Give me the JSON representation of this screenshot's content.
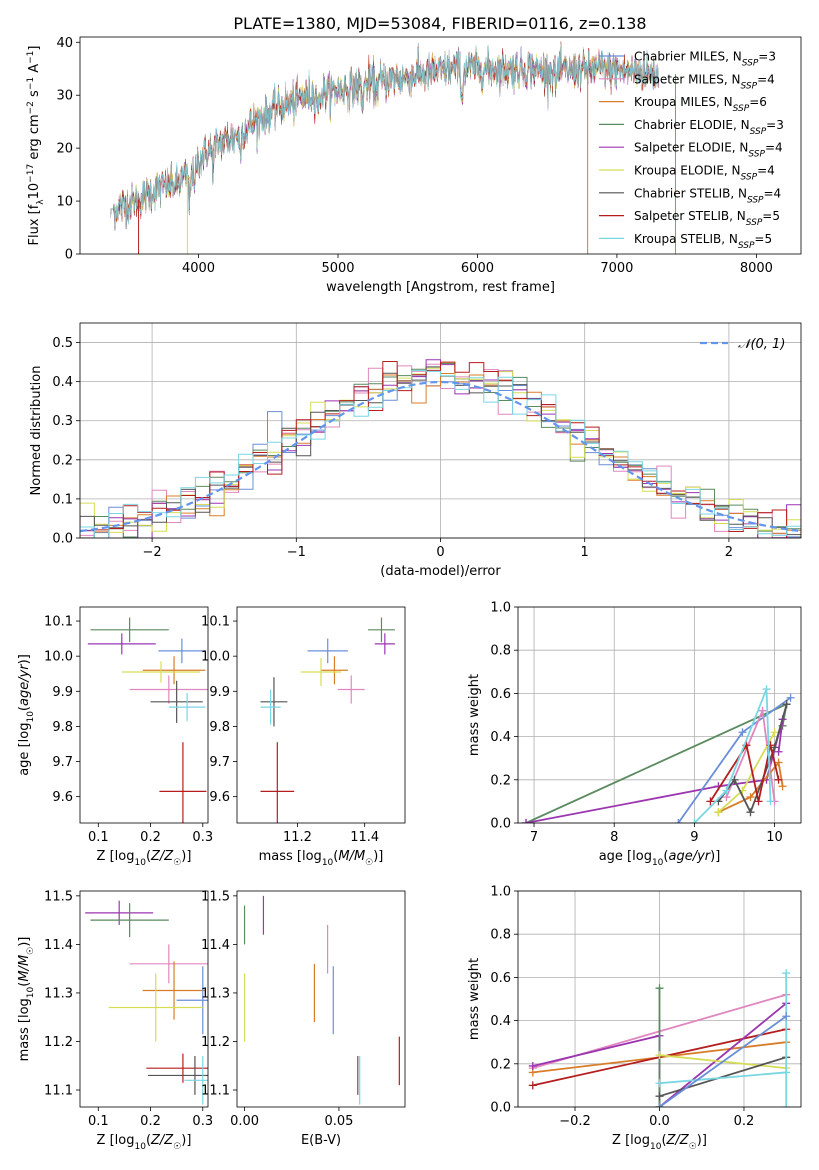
{
  "title": "PLATE=1380, MJD=53084, FIBERID=0116, z=0.138",
  "colors": {
    "Chabrier MILES": "#6a8fd8",
    "Salpeter MILES": "#e087bf",
    "Kroupa MILES": "#d87e2a",
    "Chabrier ELODIE": "#5a8a5f",
    "Salpeter ELODIE": "#9b35b0",
    "Kroupa ELODIE": "#d6dd55",
    "Chabrier STELIB": "#555555",
    "Salpeter STELIB": "#b51e1e",
    "Kroupa STELIB": "#79d6e3",
    "gaussian": "#6495ed"
  },
  "chart_data": [
    {
      "id": "spectrum",
      "type": "line",
      "xlabel": "wavelength [Angstrom, rest frame]",
      "ylabel": "Flux [f_λ 10^-17 erg cm^-2 s^-1 A^-1]",
      "xlim": [
        3150,
        8320
      ],
      "ylim": [
        0,
        41
      ],
      "xticks": [
        4000,
        5000,
        6000,
        7000,
        8000
      ],
      "yticks": [
        0,
        10,
        20,
        30,
        40
      ],
      "legend_position": "top-right",
      "series": [
        {
          "name": "Chabrier MILES",
          "nssp": 3
        },
        {
          "name": "Salpeter MILES",
          "nssp": 4
        },
        {
          "name": "Kroupa MILES",
          "nssp": 6
        },
        {
          "name": "Chabrier ELODIE",
          "nssp": 3
        },
        {
          "name": "Salpeter ELODIE",
          "nssp": 4
        },
        {
          "name": "Kroupa ELODIE",
          "nssp": 4
        },
        {
          "name": "Chabrier STELIB",
          "nssp": 4
        },
        {
          "name": "Salpeter STELIB",
          "nssp": 5
        },
        {
          "name": "Kroupa STELIB",
          "nssp": 5
        }
      ],
      "continuum": [
        [
          3370,
          8
        ],
        [
          3450,
          9
        ],
        [
          3550,
          10
        ],
        [
          3650,
          11.5
        ],
        [
          3750,
          13
        ],
        [
          3850,
          13
        ],
        [
          3950,
          16
        ],
        [
          4050,
          19
        ],
        [
          4150,
          21
        ],
        [
          4250,
          22
        ],
        [
          4400,
          25
        ],
        [
          4600,
          28
        ],
        [
          4800,
          30
        ],
        [
          5000,
          31
        ],
        [
          5200,
          32
        ],
        [
          5400,
          33
        ],
        [
          5600,
          34
        ],
        [
          5800,
          35
        ],
        [
          6000,
          35
        ],
        [
          6300,
          35
        ],
        [
          6600,
          34.5
        ],
        [
          6900,
          35
        ],
        [
          7100,
          34.5
        ],
        [
          7300,
          34
        ]
      ],
      "edges": [
        {
          "series": "Kroupa ELODIE",
          "x": 3920
        },
        {
          "series": "Salpeter STELIB",
          "x": 3570
        },
        {
          "series": "Kroupa MILES",
          "x": 6790
        },
        {
          "series": "Kroupa MILES",
          "x": 7420
        }
      ]
    },
    {
      "id": "residuals",
      "type": "histogram",
      "xlabel": "(data-model)/error",
      "ylabel": "Normed distribution",
      "xlim": [
        -2.5,
        2.5
      ],
      "ylim": [
        0,
        0.55
      ],
      "xticks": [
        -2,
        -1,
        0,
        1,
        2
      ],
      "yticks": [
        0.0,
        0.1,
        0.2,
        0.3,
        0.4,
        0.5
      ],
      "bin_width": 0.1,
      "reference_curve": {
        "label": "𝒩(0, 1)",
        "mu": 0,
        "sigma": 1
      },
      "legend_position": "top-right",
      "grid": true
    },
    {
      "id": "age-vs-Z",
      "type": "errorbar",
      "xlabel": "Z [log10(Z/Z☉)]",
      "ylabel": "age [log10(age/yr)]",
      "xlim": [
        0.065,
        0.31
      ],
      "ylim": [
        9.525,
        10.14
      ],
      "xticks": [
        0.1,
        0.2,
        0.3
      ],
      "yticks": [
        9.6,
        9.7,
        9.8,
        9.9,
        10.0,
        10.1
      ],
      "points": [
        {
          "series": "Chabrier ELODIE",
          "x": 0.16,
          "xerr": 0.075,
          "y": 10.075,
          "yerr": 0.035
        },
        {
          "series": "Salpeter ELODIE",
          "x": 0.145,
          "xerr": 0.065,
          "y": 10.035,
          "yerr": 0.03
        },
        {
          "series": "Chabrier MILES",
          "x": 0.26,
          "xerr": 0.045,
          "y": 10.015,
          "yerr": 0.035
        },
        {
          "series": "Kroupa MILES",
          "x": 0.245,
          "xerr": 0.06,
          "y": 9.96,
          "yerr": 0.04
        },
        {
          "series": "Kroupa ELODIE",
          "x": 0.22,
          "xerr": 0.075,
          "y": 9.955,
          "yerr": 0.03
        },
        {
          "series": "Salpeter MILES",
          "x": 0.235,
          "xerr": 0.075,
          "y": 9.905,
          "yerr": 0.04
        },
        {
          "series": "Chabrier STELIB",
          "x": 0.25,
          "xerr": 0.05,
          "y": 9.87,
          "yerr": 0.06
        },
        {
          "series": "Kroupa STELIB",
          "x": 0.27,
          "xerr": 0.035,
          "y": 9.855,
          "yerr": 0.04
        },
        {
          "series": "Salpeter STELIB",
          "x": 0.262,
          "xerr": 0.045,
          "y": 9.615,
          "yerr": 0.14
        }
      ]
    },
    {
      "id": "age-vs-mass",
      "type": "errorbar",
      "xlabel": "mass [log10(M/M☉)]",
      "ylabel": "",
      "xlim": [
        11.02,
        11.52
      ],
      "ylim": [
        9.525,
        10.14
      ],
      "xticks": [
        11.2,
        11.4
      ],
      "yticks": [
        9.6,
        9.7,
        9.8,
        9.9,
        10.0,
        10.1
      ],
      "points": [
        {
          "series": "Chabrier ELODIE",
          "x": 11.45,
          "xerr": 0.04,
          "y": 10.075,
          "yerr": 0.035
        },
        {
          "series": "Salpeter ELODIE",
          "x": 11.46,
          "xerr": 0.03,
          "y": 10.035,
          "yerr": 0.03
        },
        {
          "series": "Chabrier MILES",
          "x": 11.29,
          "xerr": 0.06,
          "y": 10.015,
          "yerr": 0.035
        },
        {
          "series": "Kroupa MILES",
          "x": 11.31,
          "xerr": 0.04,
          "y": 9.96,
          "yerr": 0.04
        },
        {
          "series": "Kroupa ELODIE",
          "x": 11.27,
          "xerr": 0.06,
          "y": 9.955,
          "yerr": 0.04
        },
        {
          "series": "Salpeter MILES",
          "x": 11.36,
          "xerr": 0.04,
          "y": 9.905,
          "yerr": 0.04
        },
        {
          "series": "Chabrier STELIB",
          "x": 11.13,
          "xerr": 0.04,
          "y": 9.87,
          "yerr": 0.07
        },
        {
          "series": "Kroupa STELIB",
          "x": 11.12,
          "xerr": 0.03,
          "y": 9.855,
          "yerr": 0.05
        },
        {
          "series": "Salpeter STELIB",
          "x": 11.14,
          "xerr": 0.05,
          "y": 9.615,
          "yerr": 0.14
        }
      ]
    },
    {
      "id": "weight-vs-age",
      "type": "line",
      "xlabel": "age [log10(age/yr)]",
      "ylabel": "mass weight",
      "xlim": [
        6.8,
        10.33
      ],
      "ylim": [
        0,
        1
      ],
      "xticks": [
        7,
        8,
        9,
        10
      ],
      "yticks": [
        0.0,
        0.2,
        0.4,
        0.6,
        0.8,
        1.0
      ],
      "grid": true,
      "series": [
        {
          "series": "Chabrier ELODIE",
          "points": [
            [
              6.9,
              0.0
            ],
            [
              10.15,
              0.55
            ],
            [
              10.1,
              0.45
            ]
          ]
        },
        {
          "series": "Salpeter ELODIE",
          "points": [
            [
              6.9,
              0.0
            ],
            [
              9.3,
              0.17
            ],
            [
              9.9,
              0.2
            ],
            [
              10.1,
              0.48
            ],
            [
              10.05,
              0.33
            ]
          ]
        },
        {
          "series": "Chabrier MILES",
          "points": [
            [
              8.8,
              0.0
            ],
            [
              9.6,
              0.42
            ],
            [
              10.2,
              0.58
            ]
          ]
        },
        {
          "series": "Salpeter MILES",
          "points": [
            [
              9.4,
              0.12
            ],
            [
              9.85,
              0.52
            ],
            [
              10.0,
              0.1
            ]
          ]
        },
        {
          "series": "Kroupa MILES",
          "points": [
            [
              9.3,
              0.05
            ],
            [
              9.7,
              0.12
            ],
            [
              10.05,
              0.28
            ],
            [
              10.1,
              0.17
            ]
          ]
        },
        {
          "series": "Kroupa ELODIE",
          "points": [
            [
              9.3,
              0.05
            ],
            [
              9.6,
              0.15
            ],
            [
              10.0,
              0.42
            ]
          ]
        },
        {
          "series": "Chabrier STELIB",
          "points": [
            [
              9.3,
              0.1
            ],
            [
              9.5,
              0.2
            ],
            [
              9.7,
              0.05
            ],
            [
              10.0,
              0.35
            ],
            [
              10.15,
              0.55
            ]
          ]
        },
        {
          "series": "Salpeter STELIB",
          "points": [
            [
              9.2,
              0.1
            ],
            [
              9.65,
              0.36
            ],
            [
              9.8,
              0.1
            ],
            [
              9.95,
              0.36
            ],
            [
              10.05,
              0.2
            ]
          ]
        },
        {
          "series": "Kroupa STELIB",
          "points": [
            [
              9.0,
              0.0
            ],
            [
              9.4,
              0.15
            ],
            [
              9.9,
              0.62
            ],
            [
              9.95,
              0.1
            ]
          ]
        }
      ]
    },
    {
      "id": "mass-vs-Z",
      "type": "errorbar",
      "xlabel": "Z [log10(Z/Z☉)]",
      "ylabel": "mass [log10(M/M☉)]",
      "xlim": [
        0.065,
        0.31
      ],
      "ylim": [
        11.065,
        11.51
      ],
      "xticks": [
        0.1,
        0.2,
        0.3
      ],
      "yticks": [
        11.1,
        11.2,
        11.3,
        11.4,
        11.5
      ],
      "points": [
        {
          "series": "Salpeter ELODIE",
          "x": 0.14,
          "xerr": 0.065,
          "y": 11.465,
          "yerr": 0.025
        },
        {
          "series": "Chabrier ELODIE",
          "x": 0.16,
          "xerr": 0.075,
          "y": 11.45,
          "yerr": 0.035
        },
        {
          "series": "Salpeter MILES",
          "x": 0.235,
          "xerr": 0.075,
          "y": 11.36,
          "yerr": 0.04
        },
        {
          "series": "Kroupa MILES",
          "x": 0.245,
          "xerr": 0.06,
          "y": 11.305,
          "yerr": 0.06
        },
        {
          "series": "Chabrier MILES",
          "x": 0.3,
          "xerr": 0.05,
          "y": 11.285,
          "yerr": 0.07
        },
        {
          "series": "Kroupa ELODIE",
          "x": 0.21,
          "xerr": 0.09,
          "y": 11.27,
          "yerr": 0.07
        },
        {
          "series": "Salpeter STELIB",
          "x": 0.262,
          "xerr": 0.07,
          "y": 11.145,
          "yerr": 0.03
        },
        {
          "series": "Chabrier STELIB",
          "x": 0.285,
          "xerr": 0.09,
          "y": 11.13,
          "yerr": 0.04
        },
        {
          "series": "Kroupa STELIB",
          "x": 0.3,
          "xerr": 0.035,
          "y": 11.12,
          "yerr": 0.05
        }
      ]
    },
    {
      "id": "mass-vs-ebv",
      "type": "errorbar",
      "xlabel": "E(B-V)",
      "ylabel": "",
      "xlim": [
        -0.004,
        0.085
      ],
      "ylim": [
        11.065,
        11.51
      ],
      "xticks": [
        0.0,
        0.05
      ],
      "yticks": [
        11.1,
        11.2,
        11.3,
        11.4,
        11.5
      ],
      "points": [
        {
          "series": "Chabrier ELODIE",
          "x": 0.0,
          "xerr": 0,
          "y": 11.44,
          "yerr": 0.04
        },
        {
          "series": "Salpeter ELODIE",
          "x": 0.01,
          "xerr": 0,
          "y": 11.46,
          "yerr": 0.04
        },
        {
          "series": "Kroupa ELODIE",
          "x": 0.0,
          "xerr": 0,
          "y": 11.27,
          "yerr": 0.07
        },
        {
          "series": "Salpeter MILES",
          "x": 0.044,
          "xerr": 0,
          "y": 11.39,
          "yerr": 0.05
        },
        {
          "series": "Kroupa MILES",
          "x": 0.037,
          "xerr": 0,
          "y": 11.3,
          "yerr": 0.06
        },
        {
          "series": "Chabrier MILES",
          "x": 0.047,
          "xerr": 0,
          "y": 11.285,
          "yerr": 0.07
        },
        {
          "series": "Chabrier STELIB",
          "x": 0.06,
          "xerr": 0,
          "y": 11.13,
          "yerr": 0.04
        },
        {
          "series": "Kroupa STELIB",
          "x": 0.061,
          "xerr": 0,
          "y": 11.12,
          "yerr": 0.05
        },
        {
          "series": "Salpeter STELIB",
          "x": 0.082,
          "xerr": 0,
          "y": 11.16,
          "yerr": 0.05
        }
      ]
    },
    {
      "id": "weight-vs-Z",
      "type": "line",
      "xlabel": "Z [log10(Z/Z☉)]",
      "ylabel": "mass weight",
      "xlim": [
        -0.335,
        0.335
      ],
      "ylim": [
        0,
        1
      ],
      "xticks": [
        -0.2,
        0.0,
        0.2
      ],
      "yticks": [
        0.0,
        0.2,
        0.4,
        0.6,
        0.8,
        1.0
      ],
      "grid": true,
      "series": [
        {
          "series": "Salpeter MILES",
          "points": [
            [
              -0.3,
              0.18
            ],
            [
              0.3,
              0.52
            ]
          ]
        },
        {
          "series": "Kroupa MILES",
          "points": [
            [
              -0.3,
              0.16
            ],
            [
              0.3,
              0.3
            ]
          ]
        },
        {
          "series": "Salpeter STELIB",
          "points": [
            [
              -0.3,
              0.1
            ],
            [
              0.3,
              0.36
            ]
          ]
        },
        {
          "series": "Salpeter ELODIE",
          "points": [
            [
              -0.3,
              0.19
            ],
            [
              0.0,
              0.33
            ],
            [
              0.0,
              0.0
            ],
            [
              0.3,
              0.48
            ]
          ]
        },
        {
          "series": "Chabrier ELODIE",
          "points": [
            [
              0.0,
              0.55
            ],
            [
              0.0,
              0.0
            ]
          ]
        },
        {
          "series": "Kroupa ELODIE",
          "points": [
            [
              0.0,
              0.24
            ],
            [
              0.3,
              0.18
            ]
          ]
        },
        {
          "series": "Chabrier STELIB",
          "points": [
            [
              0.0,
              0.05
            ],
            [
              0.3,
              0.23
            ]
          ]
        },
        {
          "series": "Kroupa STELIB",
          "points": [
            [
              0.0,
              0.11
            ],
            [
              0.3,
              0.16
            ],
            [
              0.3,
              0.62
            ],
            [
              0.3,
              0.0
            ]
          ]
        },
        {
          "series": "Chabrier MILES",
          "points": [
            [
              0.0,
              0.0
            ],
            [
              0.3,
              0.42
            ]
          ]
        }
      ]
    }
  ]
}
